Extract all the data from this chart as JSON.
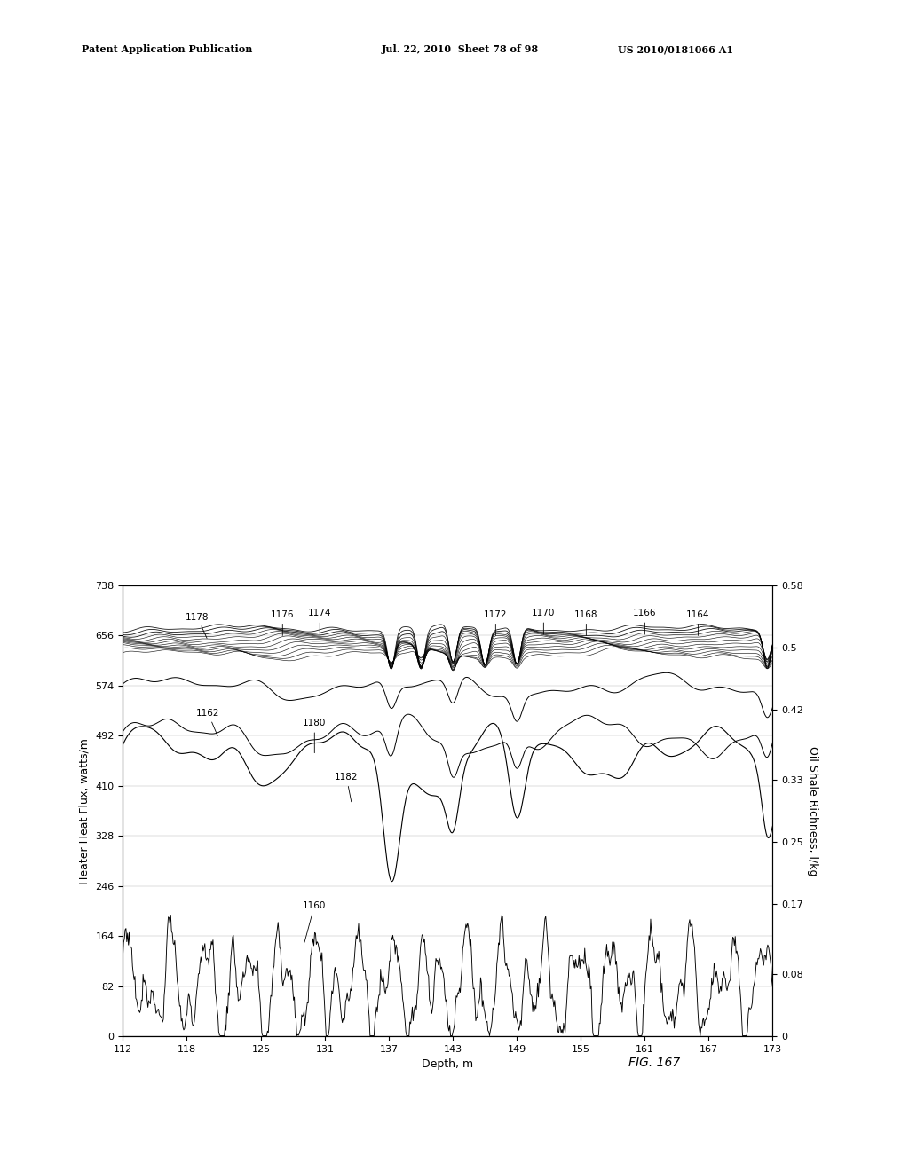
{
  "title": "FIG. 167",
  "xlabel": "Depth, m",
  "ylabel_left": "Heater Heat Flux, watts/m",
  "ylabel_right": "Oil Shale Richness, l/kg",
  "x_min": 112,
  "x_max": 173,
  "y_left_min": 0,
  "y_left_max": 738,
  "y_right_min": 0,
  "y_right_max": 0.58,
  "x_ticks": [
    112,
    118,
    125,
    131,
    137,
    143,
    149,
    155,
    161,
    167,
    173
  ],
  "y_left_ticks": [
    0,
    82,
    164,
    246,
    328,
    410,
    492,
    574,
    656,
    738
  ],
  "y_right_ticks": [
    0,
    0.08,
    0.17,
    0.25,
    0.33,
    0.42,
    0.5,
    0.58
  ],
  "header_left": "Patent Application Publication",
  "header_mid": "Jul. 22, 2010  Sheet 78 of 98",
  "header_right": "US 2010/0181066 A1",
  "fig_label": "FIG. 167"
}
